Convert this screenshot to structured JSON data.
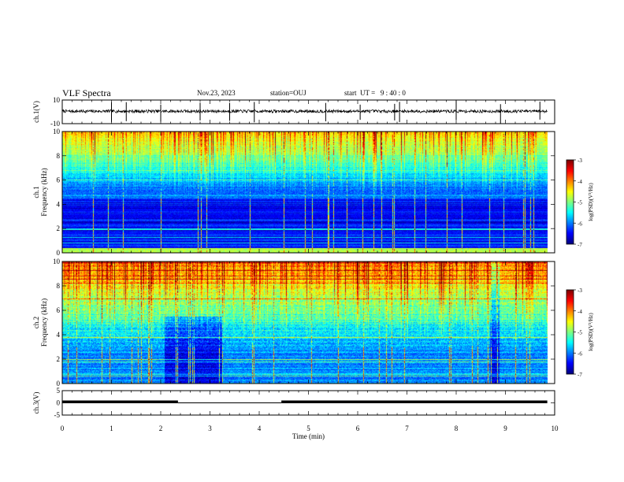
{
  "header": {
    "title": "VLF Spectra",
    "date": "Nov.23, 2023",
    "station": "station=OUJ",
    "start": "start  UT =   9 : 40 : 0"
  },
  "chart_data": [
    {
      "type": "line",
      "name": "waveform-ch1",
      "ylabel": "ch.1(V)",
      "ylim": [
        -10,
        10
      ],
      "ytick_labels": [
        "10",
        "-10"
      ],
      "xlim": [
        0,
        10
      ],
      "baseline": 0.5,
      "spikes_x": [
        1.0,
        1.3,
        2.0,
        2.8,
        3.4,
        3.9,
        5.35,
        6.05,
        6.75,
        6.85,
        8.0,
        8.9,
        9.7
      ]
    },
    {
      "type": "heatmap",
      "name": "spectrogram-ch1",
      "ylabel": "ch.1\nFrequency  (kHz)",
      "ylim": [
        0,
        10
      ],
      "ytick_labels": [
        "0",
        "2",
        "4",
        "6",
        "8",
        "10"
      ],
      "xlim": [
        0,
        9.85
      ],
      "colorbar": {
        "label": "log(PSD)(V²/Hz)",
        "range": [
          -7,
          -3
        ],
        "tick_labels": [
          "-3",
          "-4",
          "-5",
          "-6",
          "-7"
        ]
      }
    },
    {
      "type": "heatmap",
      "name": "spectrogram-ch2",
      "ylabel": "ch.2\nFrequency  (kHz)",
      "ylim": [
        0,
        10
      ],
      "ytick_labels": [
        "0",
        "2",
        "4",
        "6",
        "8",
        "10"
      ],
      "xlim": [
        0,
        9.85
      ],
      "colorbar": {
        "label": "log(PSD)(V²/Hz)",
        "range": [
          -7,
          -3
        ],
        "tick_labels": [
          "-3",
          "-4",
          "-5",
          "-6",
          "-7"
        ]
      }
    },
    {
      "type": "line",
      "name": "signal-ch3",
      "ylabel": "ch.3(V)",
      "ylim": [
        -5,
        5
      ],
      "ytick_labels": [
        "5",
        "0",
        "-5"
      ],
      "xlim": [
        0,
        10
      ],
      "segments": [
        {
          "x": [
            0,
            2.35
          ],
          "y": 0.4
        },
        {
          "x": [
            2.35,
            4.45
          ],
          "y": 0.0
        },
        {
          "x": [
            4.45,
            9.85
          ],
          "y": 0.4
        }
      ]
    }
  ],
  "xaxis": {
    "label": "Time  (min)",
    "xlim": [
      0,
      10
    ],
    "tick_labels": [
      "0",
      "1",
      "2",
      "3",
      "4",
      "5",
      "6",
      "7",
      "8",
      "9",
      "10"
    ]
  },
  "colors": {
    "colormap": [
      "#000080",
      "#0000ff",
      "#0080ff",
      "#00ffff",
      "#80ff80",
      "#ffff00",
      "#ff8000",
      "#ff0000",
      "#800000",
      "#ffffff"
    ]
  }
}
